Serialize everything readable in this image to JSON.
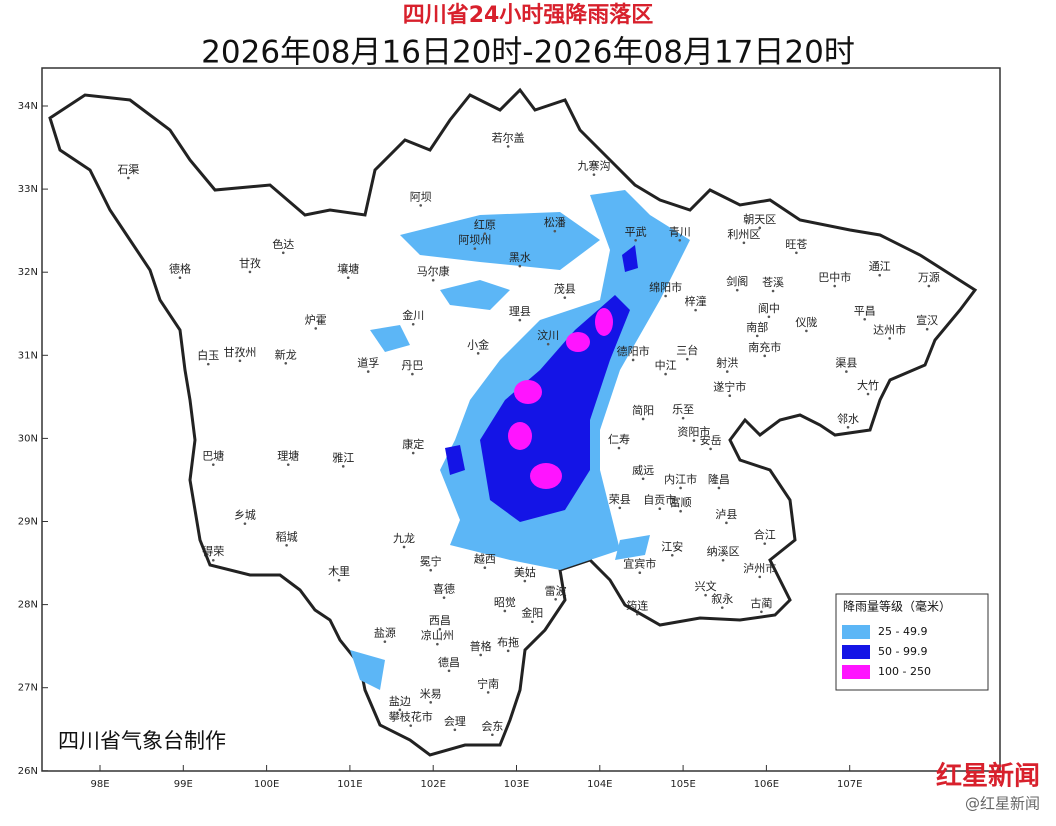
{
  "map": {
    "title": "四川省24小时强降雨落区",
    "subtitle": "2026年08月16日20时-2026年08月17日20时",
    "lat_ticks": [
      {
        "value": 34,
        "label": "34N"
      },
      {
        "value": 33,
        "label": "33N"
      },
      {
        "value": 32,
        "label": "32N"
      },
      {
        "value": 31,
        "label": "31N"
      },
      {
        "value": 30,
        "label": "30N"
      },
      {
        "value": 29,
        "label": "29N"
      },
      {
        "value": 28,
        "label": "28N"
      },
      {
        "value": 27,
        "label": "27N"
      },
      {
        "value": 26,
        "label": "26N"
      }
    ],
    "lon_ticks": [
      {
        "value": 98,
        "label": "98E"
      },
      {
        "value": 99,
        "label": "99E"
      },
      {
        "value": 100,
        "label": "100E"
      },
      {
        "value": 101,
        "label": "101E"
      },
      {
        "value": 102,
        "label": "102E"
      },
      {
        "value": 103,
        "label": "103E"
      },
      {
        "value": 104,
        "label": "104E"
      },
      {
        "value": 105,
        "label": "105E"
      },
      {
        "value": 106,
        "label": "106E"
      },
      {
        "value": 107,
        "label": "107E"
      }
    ],
    "legend": {
      "title": "降雨量等级（毫米）",
      "items": [
        {
          "label": "25 - 49.9",
          "color": "#5cb6f6"
        },
        {
          "label": "50 - 99.9",
          "color": "#1414e6"
        },
        {
          "label": "100 - 250",
          "color": "#ff14ff"
        }
      ]
    },
    "places": [
      {
        "name": "石渠",
        "lon": 98.34,
        "lat": 33.23
      },
      {
        "name": "若尔盖",
        "lon": 102.9,
        "lat": 33.61
      },
      {
        "name": "九寨沟",
        "lon": 103.93,
        "lat": 33.27
      },
      {
        "name": "阿坝",
        "lon": 101.85,
        "lat": 32.9
      },
      {
        "name": "红原",
        "lon": 102.62,
        "lat": 32.56
      },
      {
        "name": "松潘",
        "lon": 103.46,
        "lat": 32.59
      },
      {
        "name": "阿坝州",
        "lon": 102.5,
        "lat": 32.38
      },
      {
        "name": "平武",
        "lon": 104.43,
        "lat": 32.48
      },
      {
        "name": "青川",
        "lon": 104.96,
        "lat": 32.48
      },
      {
        "name": "色达",
        "lon": 100.2,
        "lat": 32.33
      },
      {
        "name": "甘孜",
        "lon": 99.8,
        "lat": 32.1
      },
      {
        "name": "德格",
        "lon": 98.96,
        "lat": 32.03
      },
      {
        "name": "壤塘",
        "lon": 100.98,
        "lat": 32.03
      },
      {
        "name": "黑水",
        "lon": 103.04,
        "lat": 32.17
      },
      {
        "name": "马尔康",
        "lon": 102.0,
        "lat": 32.0
      },
      {
        "name": "茂县",
        "lon": 103.58,
        "lat": 31.79
      },
      {
        "name": "绵阳市",
        "lon": 104.79,
        "lat": 31.81
      },
      {
        "name": "金川",
        "lon": 101.76,
        "lat": 31.47
      },
      {
        "name": "理县",
        "lon": 103.04,
        "lat": 31.52
      },
      {
        "name": "小金",
        "lon": 102.54,
        "lat": 31.12
      },
      {
        "name": "汶川",
        "lon": 103.38,
        "lat": 31.23
      },
      {
        "name": "炉霍",
        "lon": 100.59,
        "lat": 31.42
      },
      {
        "name": "道孚",
        "lon": 101.22,
        "lat": 30.9
      },
      {
        "name": "丹巴",
        "lon": 101.75,
        "lat": 30.87
      },
      {
        "name": "甘孜州",
        "lon": 99.68,
        "lat": 31.03
      },
      {
        "name": "新龙",
        "lon": 100.23,
        "lat": 31.0
      },
      {
        "name": "白玉",
        "lon": 99.3,
        "lat": 30.99
      },
      {
        "name": "巴塘",
        "lon": 99.36,
        "lat": 29.78
      },
      {
        "name": "理塘",
        "lon": 100.26,
        "lat": 29.78
      },
      {
        "name": "雅江",
        "lon": 100.92,
        "lat": 29.76
      },
      {
        "name": "康定",
        "lon": 101.76,
        "lat": 29.92
      },
      {
        "name": "乡城",
        "lon": 99.74,
        "lat": 29.07
      },
      {
        "name": "稻城",
        "lon": 100.24,
        "lat": 28.81
      },
      {
        "name": "得荣",
        "lon": 99.36,
        "lat": 28.63
      },
      {
        "name": "九龙",
        "lon": 101.65,
        "lat": 28.79
      },
      {
        "name": "木里",
        "lon": 100.87,
        "lat": 28.39
      },
      {
        "name": "盐源",
        "lon": 101.42,
        "lat": 27.65
      },
      {
        "name": "凉山州",
        "lon": 102.05,
        "lat": 27.62
      },
      {
        "name": "西昌",
        "lon": 102.08,
        "lat": 27.8
      },
      {
        "name": "喜德",
        "lon": 102.13,
        "lat": 28.18
      },
      {
        "name": "冕宁",
        "lon": 101.97,
        "lat": 28.51
      },
      {
        "name": "越西",
        "lon": 102.62,
        "lat": 28.54
      },
      {
        "name": "美姑",
        "lon": 103.1,
        "lat": 28.38
      },
      {
        "name": "雷波",
        "lon": 103.47,
        "lat": 28.16
      },
      {
        "name": "金阳",
        "lon": 103.19,
        "lat": 27.89
      },
      {
        "name": "昭觉",
        "lon": 102.86,
        "lat": 28.02
      },
      {
        "name": "普格",
        "lon": 102.57,
        "lat": 27.49
      },
      {
        "name": "布拖",
        "lon": 102.9,
        "lat": 27.54
      },
      {
        "name": "德昌",
        "lon": 102.19,
        "lat": 27.3
      },
      {
        "name": "宁南",
        "lon": 102.66,
        "lat": 27.04
      },
      {
        "name": "米易",
        "lon": 101.97,
        "lat": 26.92
      },
      {
        "name": "盐边",
        "lon": 101.6,
        "lat": 26.83
      },
      {
        "name": "攀枝花市",
        "lon": 101.73,
        "lat": 26.64
      },
      {
        "name": "会理",
        "lon": 102.26,
        "lat": 26.59
      },
      {
        "name": "会东",
        "lon": 102.71,
        "lat": 26.53
      },
      {
        "name": "德阳市",
        "lon": 104.4,
        "lat": 31.04
      },
      {
        "name": "资阳市",
        "lon": 105.13,
        "lat": 30.07
      },
      {
        "name": "内江市",
        "lon": 104.97,
        "lat": 29.5
      },
      {
        "name": "自贡市",
        "lon": 104.72,
        "lat": 29.25
      },
      {
        "name": "宜宾市",
        "lon": 104.48,
        "lat": 28.48
      },
      {
        "name": "泸州市",
        "lon": 105.92,
        "lat": 28.43
      },
      {
        "name": "遂宁市",
        "lon": 105.56,
        "lat": 30.61
      },
      {
        "name": "南充市",
        "lon": 105.98,
        "lat": 31.09
      },
      {
        "name": "巴中市",
        "lon": 106.82,
        "lat": 31.93
      },
      {
        "name": "达州市",
        "lon": 107.48,
        "lat": 31.3
      },
      {
        "name": "万源",
        "lon": 107.95,
        "lat": 31.93
      },
      {
        "name": "通江",
        "lon": 107.36,
        "lat": 32.06
      },
      {
        "name": "平昌",
        "lon": 107.18,
        "lat": 31.53
      },
      {
        "name": "宣汉",
        "lon": 107.93,
        "lat": 31.41
      },
      {
        "name": "渠县",
        "lon": 106.96,
        "lat": 30.9
      },
      {
        "name": "大竹",
        "lon": 107.22,
        "lat": 30.63
      },
      {
        "name": "邻水",
        "lon": 106.98,
        "lat": 30.23
      },
      {
        "name": "南部",
        "lon": 105.89,
        "lat": 31.33
      },
      {
        "name": "阆中",
        "lon": 106.03,
        "lat": 31.56
      },
      {
        "name": "仪陇",
        "lon": 106.48,
        "lat": 31.39
      },
      {
        "name": "苍溪",
        "lon": 106.08,
        "lat": 31.87
      },
      {
        "name": "剑阁",
        "lon": 105.65,
        "lat": 31.88
      },
      {
        "name": "旺苍",
        "lon": 106.36,
        "lat": 32.33
      },
      {
        "name": "朝天区",
        "lon": 105.92,
        "lat": 32.63
      },
      {
        "name": "利州区",
        "lon": 105.73,
        "lat": 32.45
      },
      {
        "name": "梓潼",
        "lon": 105.15,
        "lat": 31.64
      },
      {
        "name": "三台",
        "lon": 105.05,
        "lat": 31.05
      },
      {
        "name": "中江",
        "lon": 104.79,
        "lat": 30.87
      },
      {
        "name": "射洪",
        "lon": 105.53,
        "lat": 30.9
      },
      {
        "name": "安岳",
        "lon": 105.33,
        "lat": 29.97
      },
      {
        "name": "乐至",
        "lon": 105.0,
        "lat": 30.34
      },
      {
        "name": "简阳",
        "lon": 104.52,
        "lat": 30.33
      },
      {
        "name": "仁寿",
        "lon": 104.23,
        "lat": 29.98
      },
      {
        "name": "威远",
        "lon": 104.52,
        "lat": 29.61
      },
      {
        "name": "荣县",
        "lon": 104.24,
        "lat": 29.26
      },
      {
        "name": "富顺",
        "lon": 104.97,
        "lat": 29.22
      },
      {
        "name": "隆昌",
        "lon": 105.43,
        "lat": 29.5
      },
      {
        "name": "泸县",
        "lon": 105.52,
        "lat": 29.08
      },
      {
        "name": "江安",
        "lon": 104.87,
        "lat": 28.69
      },
      {
        "name": "纳溪区",
        "lon": 105.48,
        "lat": 28.63
      },
      {
        "name": "合江",
        "lon": 105.98,
        "lat": 28.83
      },
      {
        "name": "叙永",
        "lon": 105.47,
        "lat": 28.06
      },
      {
        "name": "古蔺",
        "lon": 105.94,
        "lat": 28.01
      },
      {
        "name": "兴文",
        "lon": 105.27,
        "lat": 28.21
      },
      {
        "name": "筠连",
        "lon": 104.45,
        "lat": 27.98
      }
    ],
    "credit": "四川省气象台制作",
    "watermark": "红星新闻",
    "handle": "@红星新闻"
  }
}
